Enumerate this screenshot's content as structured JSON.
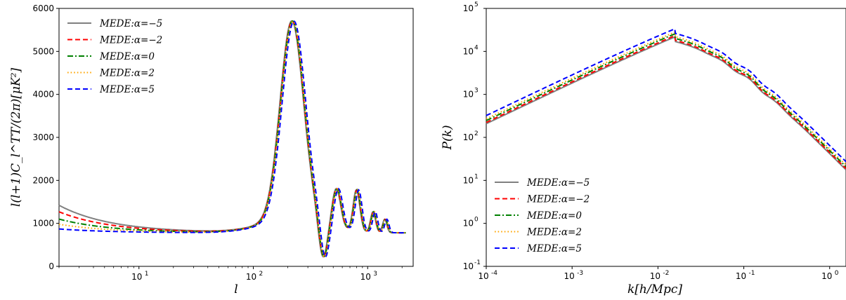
{
  "chart_data": [
    {
      "type": "line",
      "xlabel": "l",
      "ylabel": "l(l+1)C_l^TT/(2π)[μK²]",
      "xscale": "log",
      "xlim": [
        2,
        2500
      ],
      "ylim": [
        0,
        6000
      ],
      "xtick_labels": [
        "10",
        "10",
        "10"
      ],
      "xtick_exponents": [
        "1",
        "2",
        "3"
      ],
      "xtick_values": [
        10,
        100,
        1000
      ],
      "ytick_values": [
        0,
        1000,
        2000,
        3000,
        4000,
        5000,
        6000
      ],
      "ytick_labels": [
        "0",
        "1000",
        "2000",
        "3000",
        "4000",
        "5000",
        "6000"
      ],
      "legend_position": "top-left",
      "peak_values": {
        "first_peak_l": 220,
        "first_peak_value": 5350
      },
      "series": [
        {
          "name": "MEDE:α=−5",
          "color": "#808080",
          "style": "solid",
          "low_l_value": 1420,
          "l_shift": 0.985,
          "amp": 1.0
        },
        {
          "name": "MEDE:α=−2",
          "color": "#ff0000",
          "style": "dashed",
          "low_l_value": 1270,
          "l_shift": 0.995,
          "amp": 1.0
        },
        {
          "name": "MEDE:α=0",
          "color": "#008000",
          "style": "dashdot",
          "low_l_value": 1100,
          "l_shift": 1.0,
          "amp": 1.0
        },
        {
          "name": "MEDE:α=2",
          "color": "#ffa500",
          "style": "dotted",
          "low_l_value": 980,
          "l_shift": 1.01,
          "amp": 1.0
        },
        {
          "name": "MEDE:α=5",
          "color": "#0000ff",
          "style": "dashed",
          "low_l_value": 870,
          "l_shift": 1.03,
          "amp": 1.0
        }
      ]
    },
    {
      "type": "line",
      "xlabel": "k[h/Mpc]",
      "ylabel": "P(k)",
      "xscale": "log",
      "yscale": "log",
      "xlim": [
        0.0001,
        2.5
      ],
      "ylim": [
        0.1,
        100000
      ],
      "xtick_labels": [
        "10",
        "10",
        "10",
        "10",
        "10"
      ],
      "xtick_exponents": [
        "-4",
        "-3",
        "-2",
        "-1",
        "0"
      ],
      "xtick_values": [
        0.0001,
        0.001,
        0.01,
        0.1,
        1
      ],
      "ytick_labels": [
        "10",
        "10",
        "10",
        "10",
        "10",
        "10",
        "10"
      ],
      "ytick_exponents": [
        "-1",
        "0",
        "1",
        "2",
        "3",
        "4",
        "5"
      ],
      "ytick_values": [
        0.1,
        1,
        10,
        100,
        1000,
        10000,
        100000
      ],
      "legend_position": "lower-left",
      "series": [
        {
          "name": "MEDE:α=−5",
          "color": "#808080",
          "style": "solid",
          "peak_value": 22000
        },
        {
          "name": "MEDE:α=−2",
          "color": "#ff0000",
          "style": "dashed",
          "peak_value": 23500
        },
        {
          "name": "MEDE:α=0",
          "color": "#008000",
          "style": "dashdot",
          "peak_value": 26000
        },
        {
          "name": "MEDE:α=2",
          "color": "#ffa500",
          "style": "dotted",
          "peak_value": 28500
        },
        {
          "name": "MEDE:α=5",
          "color": "#0000ff",
          "style": "dashed",
          "peak_value": 34000
        }
      ]
    }
  ]
}
